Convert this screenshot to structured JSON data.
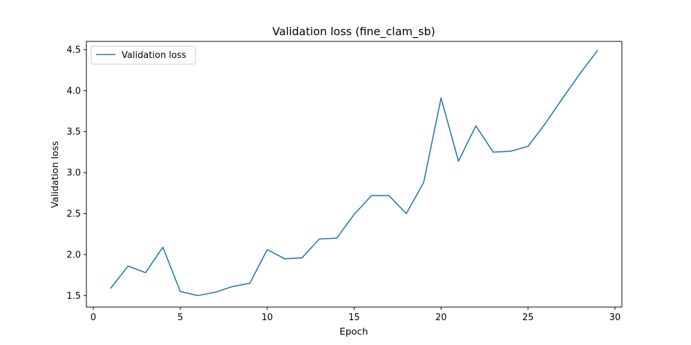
{
  "chart_data": {
    "type": "line",
    "title": "Validation loss (fine_clam_sb)",
    "xlabel": "Epoch",
    "ylabel": "Validation loss",
    "xlim": [
      -0.4,
      30.4
    ],
    "ylim": [
      1.36,
      4.6
    ],
    "xticks": [
      0,
      5,
      10,
      15,
      20,
      25,
      30
    ],
    "yticks": [
      1.5,
      2.0,
      2.5,
      3.0,
      3.5,
      4.0,
      4.5
    ],
    "xtick_labels": [
      "0",
      "5",
      "10",
      "15",
      "20",
      "25",
      "30"
    ],
    "ytick_labels": [
      "1.5",
      "2.0",
      "2.5",
      "3.0",
      "3.5",
      "4.0",
      "4.5"
    ],
    "grid": false,
    "legend_position": "upper-left",
    "series": [
      {
        "name": "Validation loss",
        "color": "#1f77b4",
        "x": [
          1,
          2,
          3,
          4,
          5,
          6,
          7,
          8,
          9,
          10,
          11,
          12,
          13,
          14,
          15,
          16,
          17,
          18,
          19,
          20,
          21,
          22,
          23,
          24,
          25,
          26,
          27,
          28,
          29
        ],
        "y": [
          1.59,
          1.86,
          1.78,
          2.09,
          1.55,
          1.5,
          1.54,
          1.61,
          1.65,
          2.06,
          1.95,
          1.96,
          2.19,
          2.2,
          2.49,
          2.72,
          2.72,
          2.5,
          2.88,
          3.91,
          3.14,
          3.57,
          3.25,
          3.26,
          3.32,
          3.6,
          3.91,
          4.21,
          4.49
        ]
      }
    ]
  }
}
